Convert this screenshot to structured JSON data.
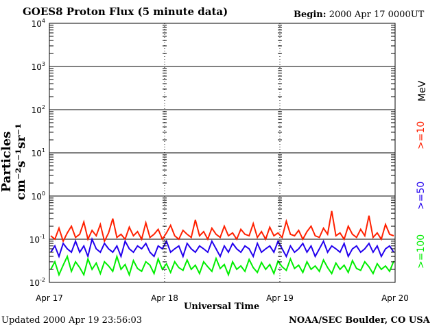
{
  "header": {
    "title": "GOES8 Proton Flux (5 minute data)",
    "begin_label": "Begin:",
    "begin_value": "2000 Apr 17 0000UT"
  },
  "footer": {
    "updated_label": "Updated",
    "updated_value": "2000 Apr 19 23:56:03",
    "credit": "NOAA/SEC Boulder, CO USA"
  },
  "axes": {
    "xlabel": "Universal Time",
    "ylabel": "Particles cm⁻²s⁻¹sr⁻¹"
  },
  "colors": {
    "ge10": "#ff2000",
    "ge50": "#2200ee",
    "ge100": "#00ee00",
    "grid": "#000000"
  },
  "chart_data": {
    "type": "line",
    "title": "GOES8 Proton Flux (5 minute data)",
    "xlabel": "Universal Time",
    "ylabel": "Particles cm⁻²s⁻¹sr⁻¹",
    "yscale": "log",
    "ylim": [
      0.01,
      10000
    ],
    "y_tick_labels": [
      {
        "value": 0.01,
        "base": "10",
        "exp": "-2"
      },
      {
        "value": 0.1,
        "base": "10",
        "exp": "-1"
      },
      {
        "value": 1,
        "base": "10",
        "exp": "0"
      },
      {
        "value": 10,
        "base": "10",
        "exp": "1"
      },
      {
        "value": 100,
        "base": "10",
        "exp": "2"
      },
      {
        "value": 1000,
        "base": "10",
        "exp": "3"
      },
      {
        "value": 10000,
        "base": "10",
        "exp": "4"
      }
    ],
    "x_tick_labels": [
      "Apr 17",
      "Apr 18",
      "Apr 19",
      "Apr 20"
    ],
    "grid": true,
    "legend_unit": "MeV",
    "series": [
      {
        "name": ">=10",
        "color": "#ff2000",
        "values": [
          0.12,
          0.1,
          0.18,
          0.09,
          0.14,
          0.2,
          0.11,
          0.13,
          0.25,
          0.1,
          0.16,
          0.12,
          0.22,
          0.09,
          0.14,
          0.3,
          0.11,
          0.13,
          0.1,
          0.19,
          0.12,
          0.15,
          0.1,
          0.24,
          0.11,
          0.13,
          0.17,
          0.1,
          0.14,
          0.21,
          0.12,
          0.1,
          0.16,
          0.13,
          0.11,
          0.28,
          0.12,
          0.15,
          0.1,
          0.18,
          0.13,
          0.11,
          0.2,
          0.12,
          0.14,
          0.1,
          0.17,
          0.13,
          0.12,
          0.23,
          0.11,
          0.15,
          0.1,
          0.19,
          0.12,
          0.14,
          0.11,
          0.26,
          0.13,
          0.12,
          0.16,
          0.1,
          0.15,
          0.2,
          0.12,
          0.11,
          0.18,
          0.13,
          0.45,
          0.12,
          0.14,
          0.1,
          0.2,
          0.13,
          0.11,
          0.17,
          0.12,
          0.35,
          0.11,
          0.14,
          0.1,
          0.22,
          0.13,
          0.12
        ]
      },
      {
        "name": ">=50",
        "color": "#2200ee",
        "values": [
          0.05,
          0.07,
          0.04,
          0.08,
          0.06,
          0.05,
          0.09,
          0.05,
          0.07,
          0.04,
          0.1,
          0.06,
          0.05,
          0.08,
          0.06,
          0.05,
          0.07,
          0.04,
          0.09,
          0.06,
          0.05,
          0.07,
          0.06,
          0.08,
          0.05,
          0.04,
          0.07,
          0.06,
          0.09,
          0.05,
          0.06,
          0.07,
          0.04,
          0.08,
          0.06,
          0.05,
          0.07,
          0.06,
          0.05,
          0.09,
          0.06,
          0.04,
          0.07,
          0.05,
          0.08,
          0.06,
          0.05,
          0.07,
          0.06,
          0.04,
          0.08,
          0.05,
          0.06,
          0.07,
          0.05,
          0.09,
          0.06,
          0.04,
          0.07,
          0.05,
          0.06,
          0.08,
          0.05,
          0.07,
          0.04,
          0.06,
          0.09,
          0.05,
          0.07,
          0.06,
          0.05,
          0.08,
          0.04,
          0.06,
          0.07,
          0.05,
          0.06,
          0.08,
          0.05,
          0.07,
          0.04,
          0.06,
          0.07,
          0.05
        ]
      },
      {
        "name": ">=100",
        "color": "#00ee00",
        "values": [
          0.02,
          0.03,
          0.015,
          0.025,
          0.04,
          0.018,
          0.03,
          0.022,
          0.015,
          0.035,
          0.02,
          0.028,
          0.016,
          0.03,
          0.024,
          0.018,
          0.04,
          0.02,
          0.026,
          0.015,
          0.032,
          0.021,
          0.018,
          0.03,
          0.025,
          0.016,
          0.035,
          0.02,
          0.027,
          0.017,
          0.03,
          0.022,
          0.019,
          0.033,
          0.02,
          0.025,
          0.016,
          0.03,
          0.023,
          0.018,
          0.036,
          0.021,
          0.026,
          0.015,
          0.03,
          0.02,
          0.024,
          0.018,
          0.034,
          0.022,
          0.017,
          0.029,
          0.02,
          0.026,
          0.016,
          0.031,
          0.023,
          0.019,
          0.035,
          0.021,
          0.025,
          0.017,
          0.03,
          0.02,
          0.024,
          0.018,
          0.033,
          0.022,
          0.016,
          0.028,
          0.02,
          0.025,
          0.017,
          0.032,
          0.021,
          0.019,
          0.03,
          0.023,
          0.016,
          0.027,
          0.02,
          0.024,
          0.018,
          0.031
        ]
      }
    ]
  }
}
